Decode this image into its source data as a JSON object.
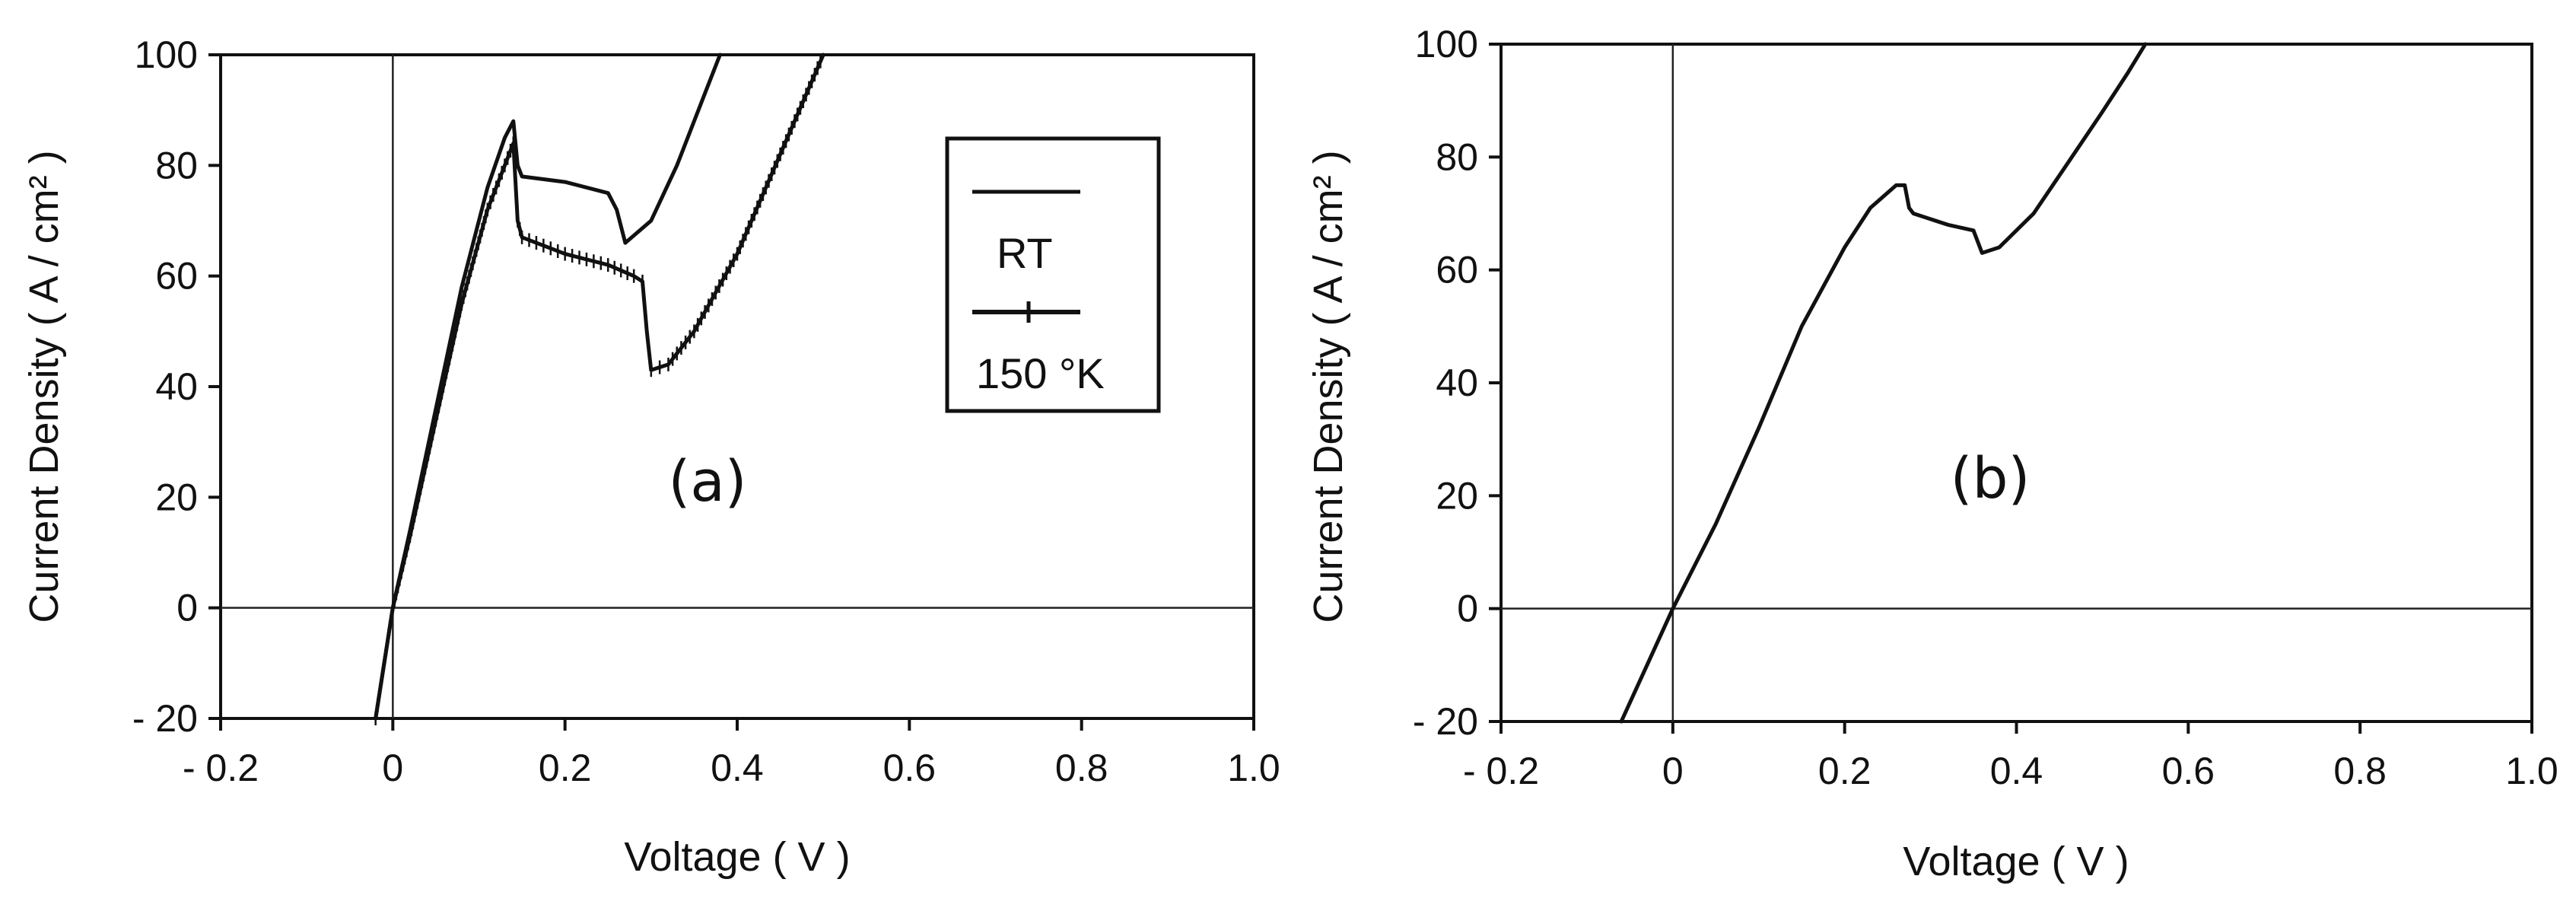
{
  "chart_data": [
    {
      "type": "line",
      "panel_label": "(a)",
      "xlabel": "Voltage ( V )",
      "ylabel": "Current Density  ( A / cm² )",
      "xlim": [
        -0.2,
        1.0
      ],
      "ylim": [
        -20,
        100
      ],
      "xticks": [
        -0.2,
        0,
        0.2,
        0.4,
        0.6,
        0.8,
        1.0
      ],
      "xtick_labels": [
        "- 0.2",
        "0",
        "0.2",
        "0.4",
        "0.6",
        "0.8",
        "1.0"
      ],
      "yticks": [
        -20,
        0,
        20,
        40,
        60,
        80,
        100
      ],
      "ytick_labels": [
        "- 20",
        "0",
        "20",
        "40",
        "60",
        "80",
        "100"
      ],
      "grid": false,
      "legend_position": "top-right",
      "series": [
        {
          "name": "RT",
          "marker": "none",
          "points": [
            [
              -0.02,
              -20
            ],
            [
              0,
              0
            ],
            [
              0.02,
              14
            ],
            [
              0.05,
              36
            ],
            [
              0.08,
              58
            ],
            [
              0.11,
              76
            ],
            [
              0.13,
              85
            ],
            [
              0.14,
              88
            ],
            [
              0.145,
              80
            ],
            [
              0.15,
              78
            ],
            [
              0.2,
              77
            ],
            [
              0.25,
              75
            ],
            [
              0.26,
              72
            ],
            [
              0.27,
              66
            ],
            [
              0.3,
              70
            ],
            [
              0.33,
              80
            ],
            [
              0.36,
              92
            ],
            [
              0.38,
              100
            ]
          ]
        },
        {
          "name": "150 °K",
          "marker": "tick",
          "points": [
            [
              -0.02,
              -20
            ],
            [
              0,
              0
            ],
            [
              0.02,
              13
            ],
            [
              0.05,
              34
            ],
            [
              0.08,
              55
            ],
            [
              0.11,
              72
            ],
            [
              0.13,
              80
            ],
            [
              0.14,
              84
            ],
            [
              0.145,
              70
            ],
            [
              0.15,
              67
            ],
            [
              0.2,
              64
            ],
            [
              0.25,
              62
            ],
            [
              0.28,
              60
            ],
            [
              0.29,
              59
            ],
            [
              0.295,
              50
            ],
            [
              0.3,
              43
            ],
            [
              0.32,
              44
            ],
            [
              0.35,
              50
            ],
            [
              0.4,
              64
            ],
            [
              0.45,
              82
            ],
            [
              0.5,
              100
            ]
          ]
        }
      ]
    },
    {
      "type": "line",
      "panel_label": "(b)",
      "xlabel": "Voltage ( V )",
      "ylabel": "Current Density  ( A / cm² )",
      "xlim": [
        -0.2,
        1.0
      ],
      "ylim": [
        -20,
        100
      ],
      "xticks": [
        -0.2,
        0,
        0.2,
        0.4,
        0.6,
        0.8,
        1.0
      ],
      "xtick_labels": [
        "- 0.2",
        "0",
        "0.2",
        "0.4",
        "0.6",
        "0.8",
        "1.0"
      ],
      "yticks": [
        -20,
        0,
        20,
        40,
        60,
        80,
        100
      ],
      "ytick_labels": [
        "- 20",
        "0",
        "20",
        "40",
        "60",
        "80",
        "100"
      ],
      "grid": false,
      "series": [
        {
          "marker": "none",
          "points": [
            [
              -0.06,
              -20
            ],
            [
              -0.03,
              -10
            ],
            [
              0,
              0
            ],
            [
              0.05,
              15
            ],
            [
              0.1,
              32
            ],
            [
              0.15,
              50
            ],
            [
              0.2,
              64
            ],
            [
              0.23,
              71
            ],
            [
              0.26,
              75
            ],
            [
              0.27,
              75
            ],
            [
              0.275,
              71
            ],
            [
              0.28,
              70
            ],
            [
              0.32,
              68
            ],
            [
              0.35,
              67
            ],
            [
              0.36,
              63
            ],
            [
              0.38,
              64
            ],
            [
              0.42,
              70
            ],
            [
              0.46,
              79
            ],
            [
              0.5,
              88
            ],
            [
              0.53,
              95
            ],
            [
              0.55,
              100
            ]
          ]
        }
      ]
    }
  ]
}
